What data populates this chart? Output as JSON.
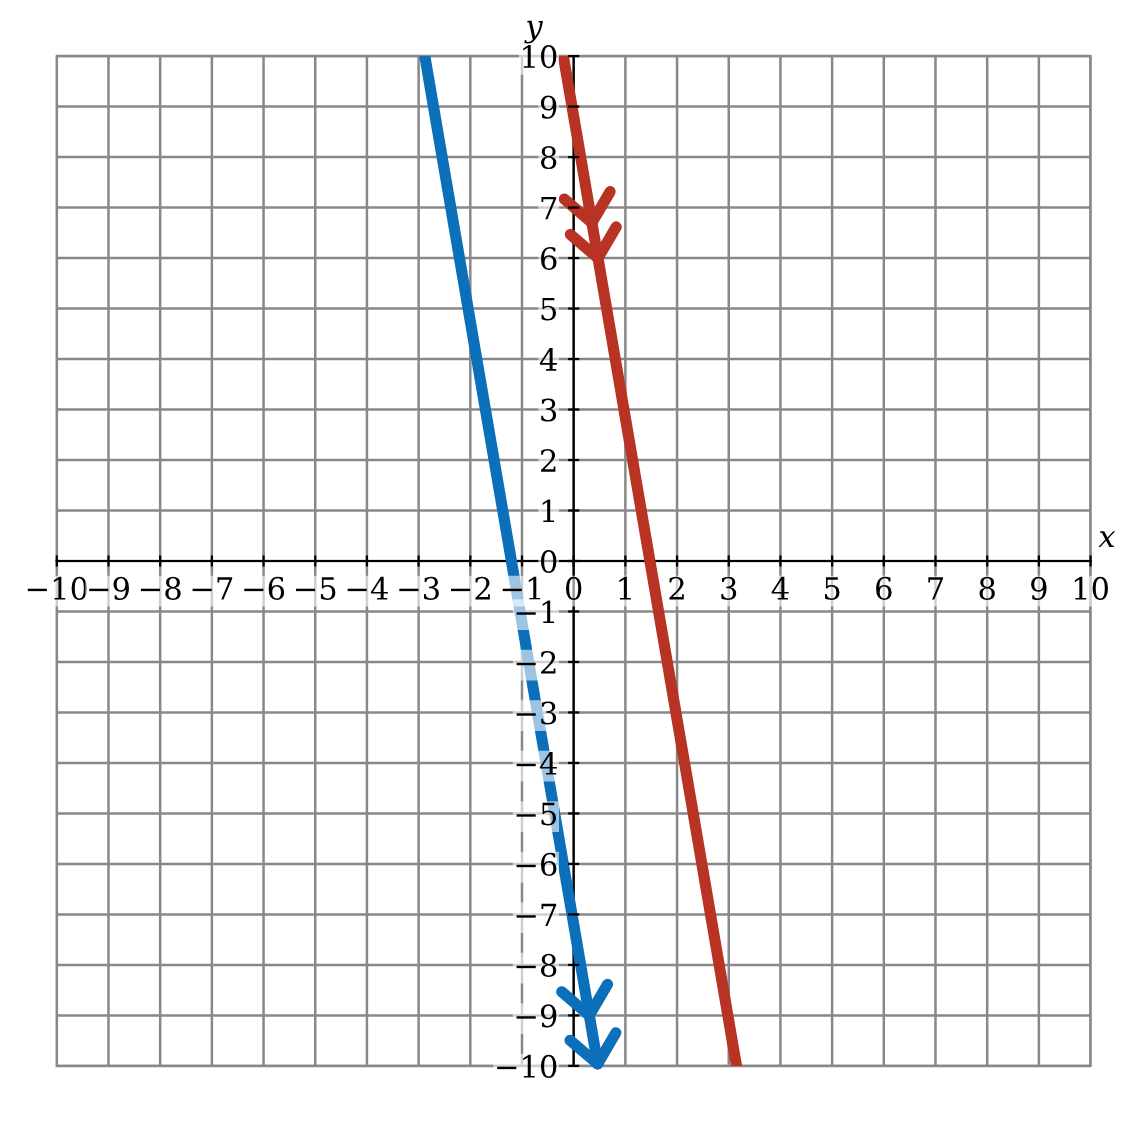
{
  "chart_data": {
    "type": "line",
    "xlabel": "x",
    "ylabel": "y",
    "xlim": [
      -10,
      10
    ],
    "ylim": [
      -10,
      10
    ],
    "xticks": [
      -10,
      -9,
      -8,
      -7,
      -6,
      -5,
      -4,
      -3,
      -2,
      -1,
      0,
      1,
      2,
      3,
      4,
      5,
      6,
      7,
      8,
      9,
      10
    ],
    "yticks": [
      -10,
      -9,
      -8,
      -7,
      -6,
      -5,
      -4,
      -3,
      -2,
      -1,
      0,
      1,
      2,
      3,
      4,
      5,
      6,
      7,
      8,
      9,
      10
    ],
    "grid": true,
    "marker": "none",
    "line_style": "solid",
    "series": [
      {
        "color": "#0b6fba",
        "x": [
          -2.88,
          0.47
        ],
        "values": [
          10,
          -10
        ]
      },
      {
        "color": "#b83323",
        "x": [
          -0.2,
          3.15
        ],
        "values": [
          10,
          -10
        ]
      }
    ]
  }
}
